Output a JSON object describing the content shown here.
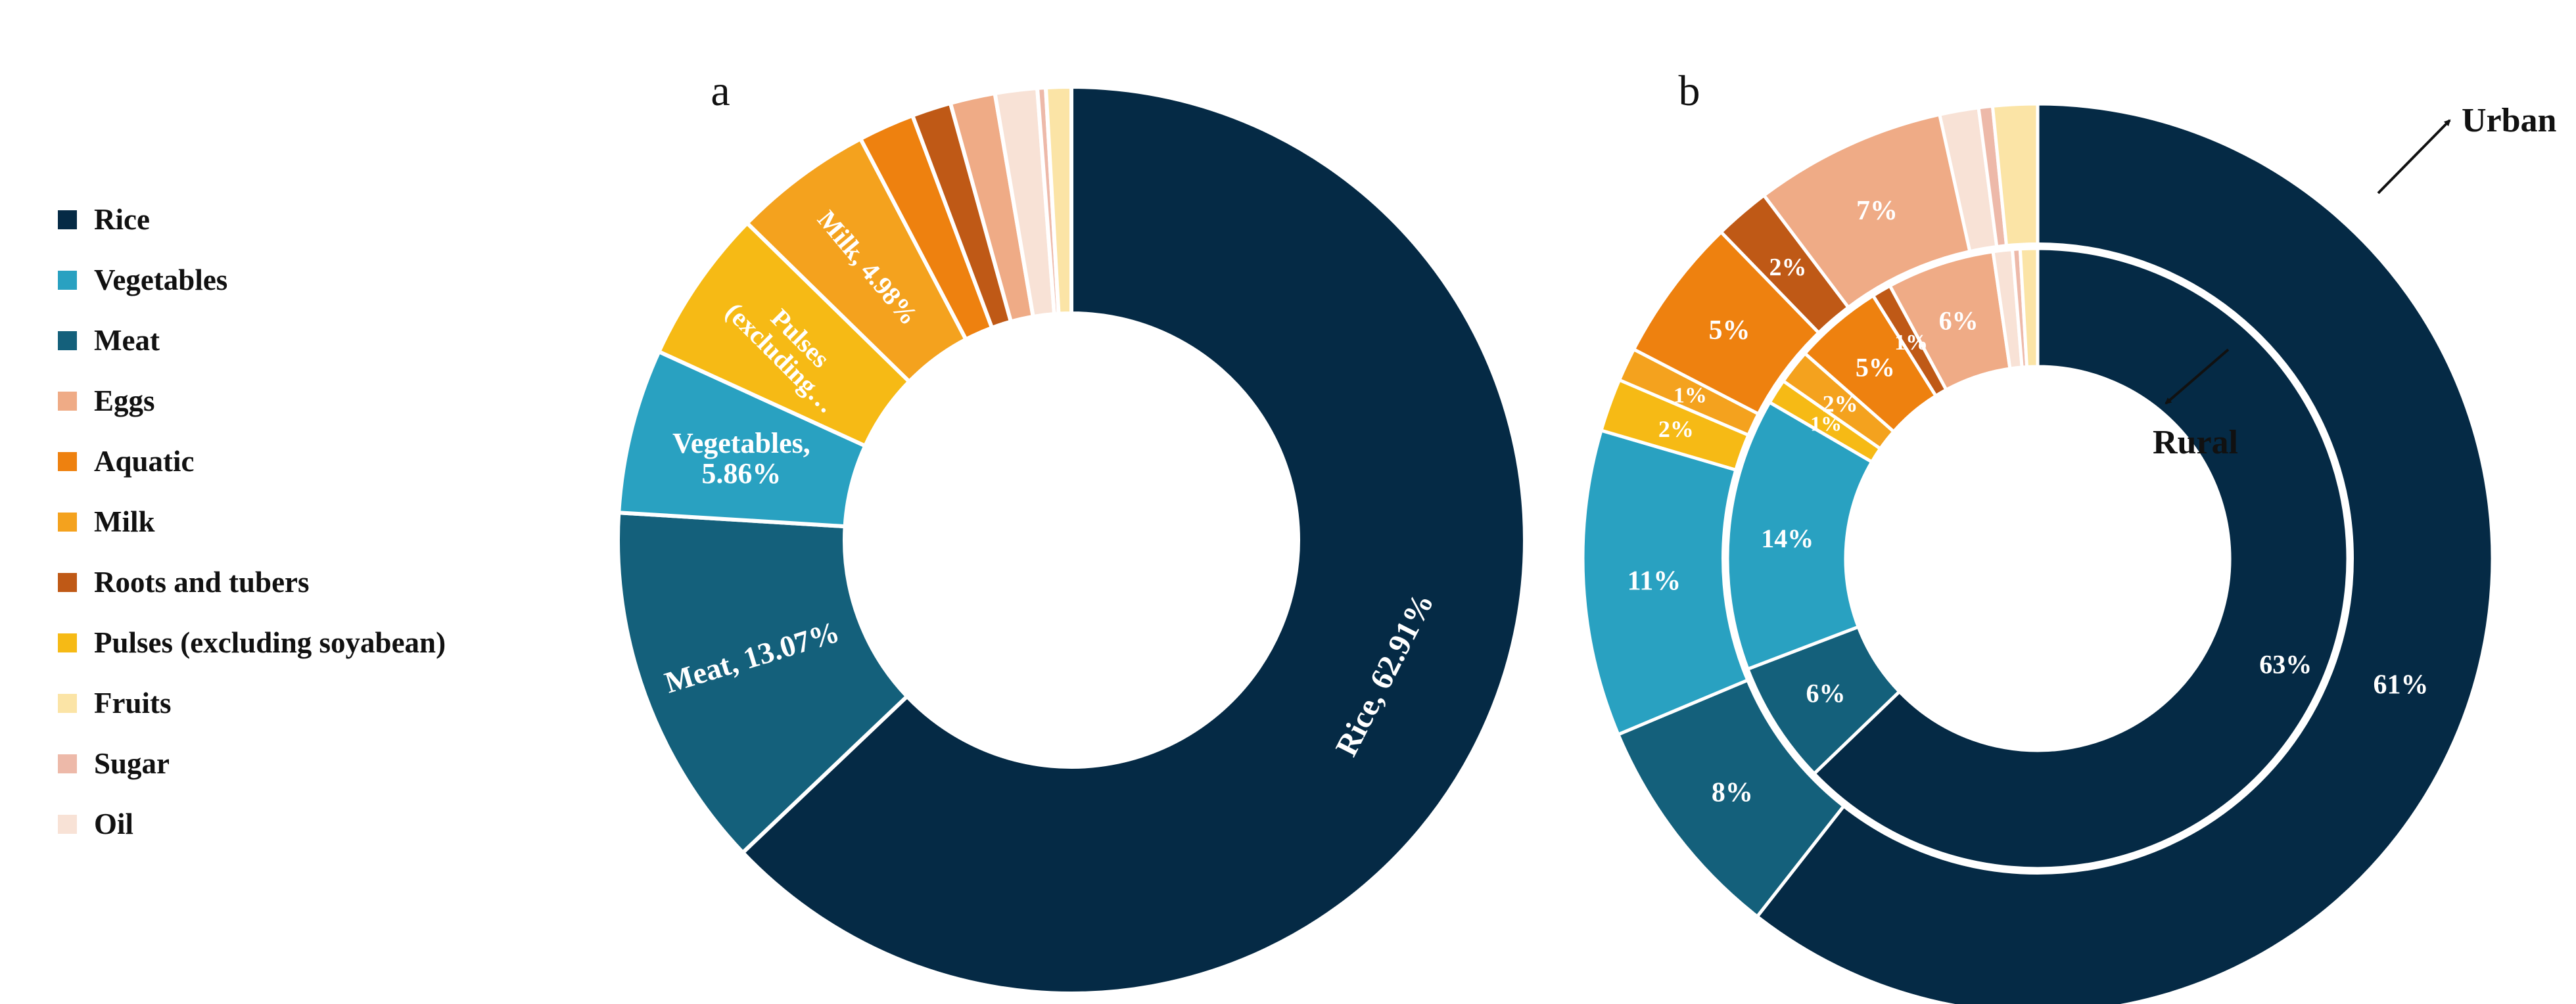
{
  "legend": {
    "items": [
      {
        "label": "Rice",
        "color": "#052A45"
      },
      {
        "label": "Vegetables",
        "color": "#29A1C1"
      },
      {
        "label": "Meat",
        "color": "#14607B"
      },
      {
        "label": "Eggs",
        "color": "#EFAB86"
      },
      {
        "label": "Aquatic",
        "color": "#EE810F"
      },
      {
        "label": "Milk",
        "color": "#F4A21E"
      },
      {
        "label": "Roots and tubers",
        "color": "#BF5916"
      },
      {
        "label": "Pulses (excluding soyabean)",
        "color": "#F6BA15"
      },
      {
        "label": "Fruits",
        "color": "#FBE4A6"
      },
      {
        "label": "Sugar",
        "color": "#EDB9A9"
      },
      {
        "label": "Oil",
        "color": "#F8E2D6"
      }
    ]
  },
  "chart_data": [
    {
      "panel": "a",
      "type": "pie",
      "subtype": "donut",
      "title": "a",
      "slices": [
        {
          "category": "Rice",
          "value": 62.91,
          "label": "Rice, 62.91%",
          "color": "#052A45"
        },
        {
          "category": "Meat",
          "value": 13.07,
          "label": "Meat, 13.07%",
          "color": "#14607B"
        },
        {
          "category": "Vegetables",
          "value": 5.86,
          "label": "Vegetables, 5.86%",
          "color": "#29A1C1"
        },
        {
          "category": "Pulses (excluding soyabean)",
          "value": 5.5,
          "label": "Pulses (excluding…",
          "color": "#F6BA15"
        },
        {
          "category": "Milk",
          "value": 4.98,
          "label": "Milk, 4.98%",
          "color": "#F4A21E"
        },
        {
          "category": "Aquatic",
          "value": 2.0,
          "label": "",
          "color": "#EE810F"
        },
        {
          "category": "Roots and tubers",
          "value": 1.4,
          "label": "",
          "color": "#BF5916"
        },
        {
          "category": "Eggs",
          "value": 1.6,
          "label": "",
          "color": "#EFAB86"
        },
        {
          "category": "Oil",
          "value": 1.5,
          "label": "",
          "color": "#F8E2D6"
        },
        {
          "category": "Sugar",
          "value": 0.3,
          "label": "",
          "color": "#EDB9A9"
        },
        {
          "category": "Fruits",
          "value": 0.9,
          "label": "",
          "color": "#FBE4A6"
        }
      ]
    },
    {
      "panel": "b",
      "type": "pie",
      "subtype": "nested-donut",
      "title": "b",
      "series": [
        {
          "name": "Urban",
          "ring": "outer",
          "annotation": "Urban",
          "slices": [
            {
              "category": "Rice",
              "value": 61.3,
              "label": "61%",
              "color": "#052A45"
            },
            {
              "category": "Meat",
              "value": 8.2,
              "label": "8%",
              "color": "#14607B"
            },
            {
              "category": "Vegetables",
              "value": 11.0,
              "label": "11%",
              "color": "#29A1C1"
            },
            {
              "category": "Pulses (excluding soyabean)",
              "value": 1.9,
              "label": "2%",
              "color": "#F6BA15"
            },
            {
              "category": "Milk",
              "value": 1.2,
              "label": "1%",
              "color": "#F4A21E"
            },
            {
              "category": "Aquatic",
              "value": 5.2,
              "label": "5%",
              "color": "#EE810F"
            },
            {
              "category": "Roots and tubers",
              "value": 2.0,
              "label": "2%",
              "color": "#BF5916"
            },
            {
              "category": "Eggs",
              "value": 6.9,
              "label": "7%",
              "color": "#EFAB86"
            },
            {
              "category": "Oil",
              "value": 1.4,
              "label": "",
              "color": "#F8E2D6"
            },
            {
              "category": "Sugar",
              "value": 0.5,
              "label": "",
              "color": "#EDB9A9"
            },
            {
              "category": "Fruits",
              "value": 1.6,
              "label": "",
              "color": "#FBE4A6"
            }
          ]
        },
        {
          "name": "Rural",
          "ring": "inner",
          "annotation": "Rural",
          "slices": [
            {
              "category": "Rice",
              "value": 62.8,
              "label": "63%",
              "color": "#052A45"
            },
            {
              "category": "Meat",
              "value": 6.4,
              "label": "6%",
              "color": "#14607B"
            },
            {
              "category": "Vegetables",
              "value": 14.2,
              "label": "14%",
              "color": "#29A1C1"
            },
            {
              "category": "Pulses (excluding soyabean)",
              "value": 1.3,
              "label": "1%",
              "color": "#F6BA15"
            },
            {
              "category": "Milk",
              "value": 1.8,
              "label": "2%",
              "color": "#F4A21E"
            },
            {
              "category": "Aquatic",
              "value": 4.6,
              "label": "5%",
              "color": "#EE810F"
            },
            {
              "category": "Roots and tubers",
              "value": 1.0,
              "label": "1%",
              "color": "#BF5916"
            },
            {
              "category": "Eggs",
              "value": 5.6,
              "label": "6%",
              "color": "#EFAB86"
            },
            {
              "category": "Oil",
              "value": 1.0,
              "label": "",
              "color": "#F8E2D6"
            },
            {
              "category": "Sugar",
              "value": 0.4,
              "label": "",
              "color": "#EDB9A9"
            },
            {
              "category": "Fruits",
              "value": 0.9,
              "label": "",
              "color": "#FBE4A6"
            }
          ]
        }
      ]
    }
  ]
}
